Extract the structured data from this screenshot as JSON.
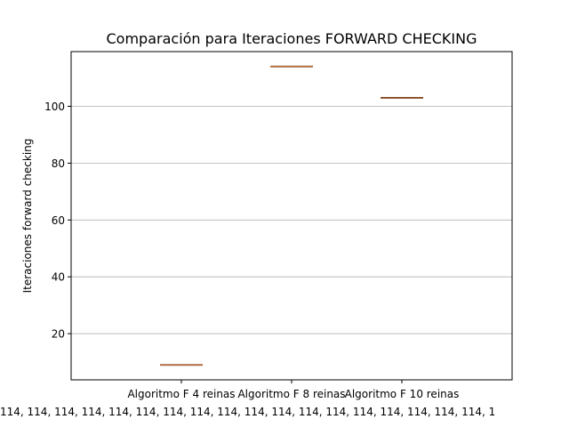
{
  "chart_data": {
    "type": "box",
    "title": "Comparación para Iteraciones FORWARD CHECKING",
    "xlabel": "",
    "ylabel": "Iteraciones forward checking",
    "categories": [
      "Algoritmo F 4 reinas",
      "Algoritmo F 8 reinas",
      "Algoritmo F 10 reinas"
    ],
    "values": [
      9,
      114,
      103
    ],
    "ylim": [
      3.75,
      119.25
    ],
    "yticks": [
      20,
      40,
      60,
      80,
      100
    ],
    "grid": "y",
    "extra_label": "114, 114, 114, 114, 114, 114, 114, 114, 114, 114, 114, 114, 114, 114, 114, 114, 114, 114, 1",
    "colors": {
      "median": "#e07b39",
      "box": "#000000",
      "grid": "#b0b0b0"
    }
  }
}
